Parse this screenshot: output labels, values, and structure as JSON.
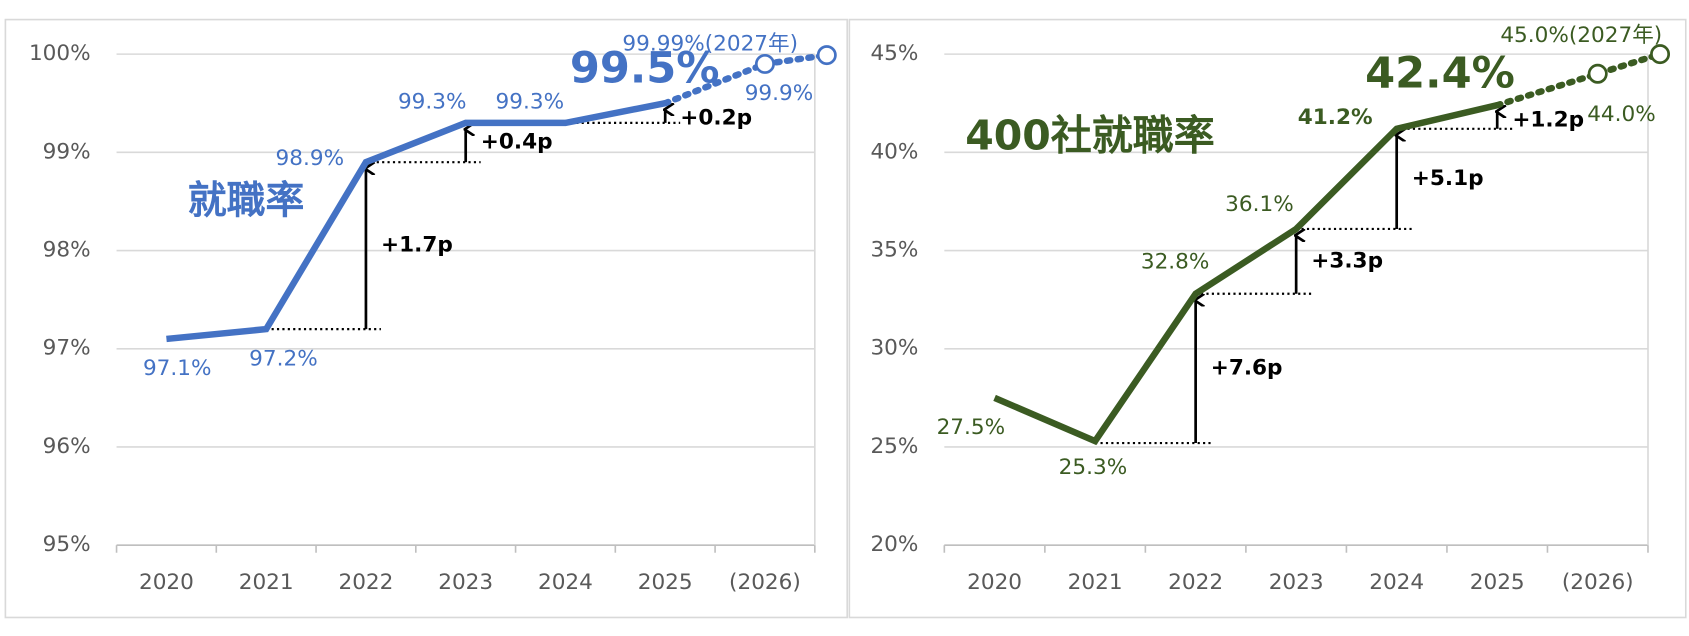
{
  "chart_data": [
    {
      "type": "line",
      "title": "就職率",
      "color": "#4472c4",
      "categories": [
        "2020",
        "2021",
        "2022",
        "2023",
        "2024",
        "2025",
        "(2026)",
        null
      ],
      "series": [
        {
          "values": [
            97.1,
            97.2,
            98.9,
            99.3,
            99.3,
            99.5,
            null,
            null
          ],
          "style": "solid",
          "value_labels": [
            "97.1%",
            "97.2%",
            "98.9%",
            "99.3%",
            "99.3%",
            "99.5%",
            null,
            null
          ]
        },
        {
          "values": [
            null,
            null,
            null,
            null,
            null,
            99.5,
            99.9,
            99.99
          ],
          "style": "dotted",
          "value_labels": [
            null,
            null,
            null,
            null,
            null,
            null,
            "99.9%",
            "99.99%(2027年)"
          ]
        }
      ],
      "steps": [
        {
          "category": "2022",
          "value": 1.7,
          "label": "+1.7p"
        },
        {
          "category": "2023",
          "value": 0.4,
          "label": "+0.4p"
        },
        {
          "category": "2025",
          "value": 0.2,
          "label": "+0.2p"
        }
      ],
      "ylim": [
        95,
        100
      ],
      "yticks": [
        {
          "value": 95,
          "label": "95%"
        },
        {
          "value": 96,
          "label": "96%"
        },
        {
          "value": 97,
          "label": "97%"
        },
        {
          "value": 98,
          "label": "98%"
        },
        {
          "value": 99,
          "label": "99%"
        },
        {
          "value": 100,
          "label": "100%"
        }
      ],
      "grid": true
    },
    {
      "type": "line",
      "title": "400社就職率",
      "color": "#3b5b22",
      "categories": [
        "2020",
        "2021",
        "2022",
        "2023",
        "2024",
        "2025",
        "(2026)",
        null
      ],
      "series": [
        {
          "values": [
            27.5,
            25.3,
            32.8,
            36.1,
            41.2,
            42.4,
            null,
            null
          ],
          "style": "solid",
          "value_labels": [
            "27.5%",
            "25.3%",
            "32.8%",
            "36.1%",
            "41.2%",
            "42.4%",
            null,
            null
          ]
        },
        {
          "values": [
            null,
            null,
            null,
            null,
            null,
            42.4,
            44.0,
            45.0
          ],
          "style": "dotted",
          "value_labels": [
            null,
            null,
            null,
            null,
            null,
            null,
            "44.0%",
            "45.0%(2027年)"
          ]
        }
      ],
      "steps": [
        {
          "category": "2022",
          "value": 7.6,
          "label": "+7.6p"
        },
        {
          "category": "2023",
          "value": 3.3,
          "label": "+3.3p"
        },
        {
          "category": "2024",
          "value": 5.1,
          "label": "+5.1p"
        },
        {
          "category": "2025",
          "value": 1.2,
          "label": "+1.2p"
        }
      ],
      "ylim": [
        20,
        45
      ],
      "yticks": [
        {
          "value": 20,
          "label": "20%"
        },
        {
          "value": 25,
          "label": "25%"
        },
        {
          "value": 30,
          "label": "30%"
        },
        {
          "value": 35,
          "label": "35%"
        },
        {
          "value": 40,
          "label": "40%"
        },
        {
          "value": 45,
          "label": "45%"
        }
      ],
      "grid": true
    }
  ]
}
